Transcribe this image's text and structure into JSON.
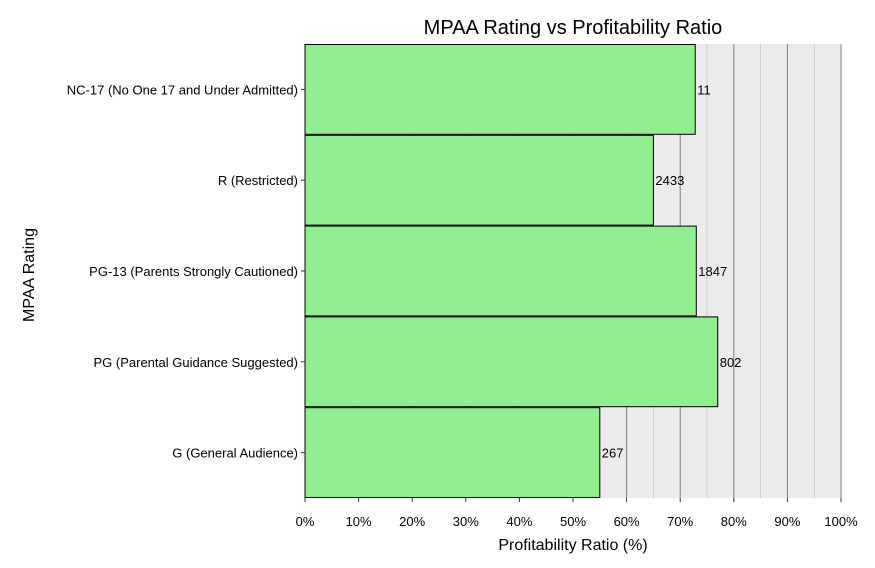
{
  "chart_data": {
    "type": "bar",
    "orientation": "horizontal",
    "title": "MPAA Rating vs Profitability Ratio",
    "xlabel": "Profitability Ratio (%)",
    "ylabel": "MPAA Rating",
    "xlim": [
      0,
      100
    ],
    "x_ticks": [
      0,
      10,
      20,
      30,
      40,
      50,
      60,
      70,
      80,
      90,
      100
    ],
    "x_tick_labels": [
      "0%",
      "10%",
      "20%",
      "30%",
      "40%",
      "50%",
      "60%",
      "70%",
      "80%",
      "90%",
      "100%"
    ],
    "categories": [
      "NC-17 (No One 17 and Under Admitted)",
      "R (Restricted)",
      "PG-13 (Parents Strongly Cautioned)",
      "PG (Parental Guidance Suggested)",
      "G (General Audience)"
    ],
    "values": [
      72.8,
      65.0,
      73.0,
      77.0,
      55.0
    ],
    "data_labels": [
      "11",
      "2433",
      "1847",
      "802",
      "267"
    ],
    "grid": true,
    "bar_color": "#90EE90",
    "bar_outline_color": "#000000",
    "panel_background": "#EBEBEB",
    "major_grid_color": "#7F7F7F",
    "minor_grid_color": "#B3B3B3"
  }
}
